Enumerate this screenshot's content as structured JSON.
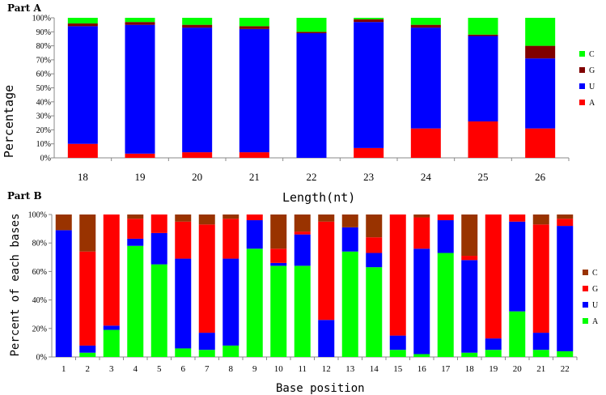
{
  "colors": {
    "A": "#ff0000",
    "U": "#0000ff",
    "G": "#800000",
    "C": "#00ff00",
    "C_partB": "#993300",
    "G_partB": "#ff0000",
    "A_partB": "#00ff00"
  },
  "chart_data": [
    {
      "part_label": "Part A",
      "type": "bar",
      "stacked": true,
      "categories": [
        "18",
        "19",
        "20",
        "21",
        "22",
        "23",
        "24",
        "25",
        "26"
      ],
      "xlabel": "Length(nt)",
      "ylabel": "Percentage",
      "ylim": [
        0,
        100
      ],
      "yticks": [
        "0%",
        "10%",
        "20%",
        "30%",
        "40%",
        "50%",
        "60%",
        "70%",
        "80%",
        "90%",
        "100%"
      ],
      "legend_placement": "right",
      "legend_order": [
        "C",
        "G",
        "U",
        "A"
      ],
      "series": [
        {
          "name": "A",
          "values": [
            10,
            3,
            4,
            4,
            0,
            7,
            21,
            26,
            21
          ]
        },
        {
          "name": "U",
          "values": [
            84,
            92,
            89,
            88,
            89,
            90,
            72,
            61,
            50
          ]
        },
        {
          "name": "G",
          "values": [
            2,
            2,
            2,
            2,
            1,
            2,
            2,
            1,
            9
          ]
        },
        {
          "name": "C",
          "values": [
            4,
            3,
            5,
            6,
            10,
            1,
            5,
            12,
            20
          ]
        }
      ]
    },
    {
      "part_label": "Part B",
      "type": "bar",
      "stacked": true,
      "categories": [
        "1",
        "2",
        "3",
        "4",
        "5",
        "6",
        "7",
        "8",
        "9",
        "10",
        "11",
        "12",
        "13",
        "14",
        "15",
        "16",
        "17",
        "18",
        "19",
        "20",
        "21",
        "22"
      ],
      "xlabel": "Base position",
      "ylabel": "Percent of each bases",
      "ylim": [
        0,
        100
      ],
      "yticks": [
        "0%",
        "20%",
        "40%",
        "60%",
        "80%",
        "100%"
      ],
      "legend_placement": "right",
      "legend_order": [
        "C",
        "G",
        "U",
        "A"
      ],
      "series": [
        {
          "name": "A",
          "values": [
            0,
            3,
            19,
            78,
            65,
            6,
            5,
            8,
            76,
            64,
            64,
            0,
            74,
            63,
            5,
            2,
            73,
            3,
            5,
            32,
            5,
            4
          ]
        },
        {
          "name": "U",
          "values": [
            89,
            5,
            3,
            5,
            22,
            63,
            12,
            61,
            20,
            2,
            22,
            26,
            17,
            10,
            10,
            74,
            23,
            65,
            8,
            63,
            12,
            88
          ]
        },
        {
          "name": "G",
          "values": [
            0,
            66,
            78,
            14,
            13,
            26,
            76,
            28,
            4,
            10,
            2,
            69,
            0,
            11,
            85,
            22,
            4,
            3,
            87,
            5,
            76,
            5
          ]
        },
        {
          "name": "C",
          "values": [
            11,
            26,
            0,
            3,
            0,
            5,
            7,
            3,
            0,
            24,
            12,
            5,
            9,
            16,
            0,
            2,
            0,
            29,
            0,
            0,
            7,
            3
          ]
        }
      ]
    }
  ]
}
